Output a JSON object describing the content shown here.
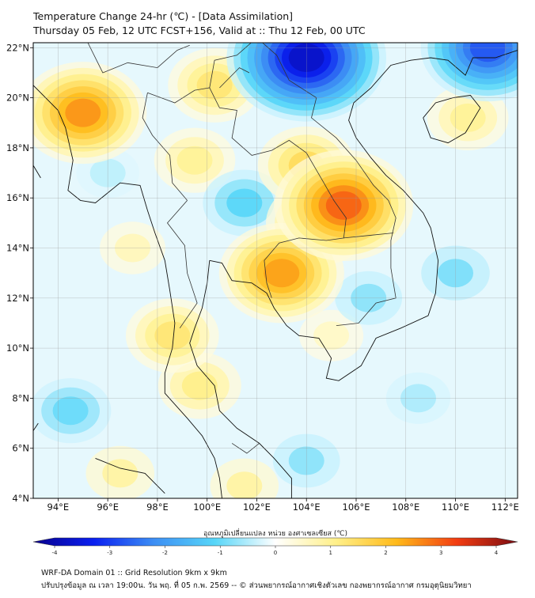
{
  "title": {
    "line1": "Temperature Change 24-hr (℃) - [Data Assimilation]",
    "line2": "Thursday 05 Feb, 12 UTC FCST+156, Valid at :: Thu 12 Feb, 00 UTC"
  },
  "map": {
    "lon_range": [
      93,
      112.5
    ],
    "lat_range": [
      4,
      22.2
    ],
    "lat_ticks": [
      "4°N",
      "6°N",
      "8°N",
      "10°N",
      "12°N",
      "14°N",
      "16°N",
      "18°N",
      "20°N",
      "22°N"
    ],
    "lon_ticks": [
      "94°E",
      "96°E",
      "98°E",
      "100°E",
      "102°E",
      "104°E",
      "106°E",
      "108°E",
      "110°E",
      "112°E"
    ],
    "lat_values": [
      4,
      6,
      8,
      10,
      12,
      14,
      16,
      18,
      20,
      22
    ],
    "lon_values": [
      94,
      96,
      98,
      100,
      102,
      104,
      106,
      108,
      110,
      112
    ],
    "grid": true,
    "hotspots": [
      {
        "lon": 105.5,
        "lat": 15.7,
        "value": 2.7
      },
      {
        "lon": 103.0,
        "lat": 13.0,
        "value": 2.2
      },
      {
        "lon": 95.0,
        "lat": 19.4,
        "value": 2.3
      },
      {
        "lon": 100.3,
        "lat": 20.5,
        "value": 1.2
      },
      {
        "lon": 98.6,
        "lat": 10.5,
        "value": 1.2
      },
      {
        "lon": 104.0,
        "lat": 17.3,
        "value": 1.4
      },
      {
        "lon": 104.5,
        "lat": 15.0,
        "value": 1.6
      },
      {
        "lon": 99.7,
        "lat": 8.5,
        "value": 1.0
      },
      {
        "lon": 99.5,
        "lat": 17.5,
        "value": 0.9
      },
      {
        "lon": 96.5,
        "lat": 5.0,
        "value": 0.8
      },
      {
        "lon": 110.5,
        "lat": 19.2,
        "value": 0.9
      },
      {
        "lon": 101.5,
        "lat": 4.5,
        "value": 0.8
      },
      {
        "lon": 105.0,
        "lat": 10.5,
        "value": 0.5
      },
      {
        "lon": 97.0,
        "lat": 14.0,
        "value": 0.6
      },
      {
        "lon": 104.0,
        "lat": 21.6,
        "value": -3.4
      },
      {
        "lon": 111.3,
        "lat": 22.0,
        "value": -2.5
      },
      {
        "lon": 101.5,
        "lat": 15.8,
        "value": -1.0
      },
      {
        "lon": 110.0,
        "lat": 13.0,
        "value": -0.8
      },
      {
        "lon": 94.5,
        "lat": 7.5,
        "value": -0.9
      },
      {
        "lon": 106.5,
        "lat": 12.0,
        "value": -0.7
      },
      {
        "lon": 96.0,
        "lat": 17.0,
        "value": -0.4
      },
      {
        "lon": 104.0,
        "lat": 5.5,
        "value": -0.7
      },
      {
        "lon": 108.5,
        "lat": 8.0,
        "value": -0.5
      }
    ]
  },
  "colorbar": {
    "label": "อุณหภูมิเปลี่ยนแปลง หน่วย องศาเซลเซียส (℃)",
    "min": -4,
    "max": 4,
    "ticks": [
      "-4",
      "-3",
      "-2",
      "-1",
      "0",
      "1",
      "2",
      "3",
      "4"
    ],
    "tick_values": [
      -4,
      -3,
      -2,
      -1,
      0,
      1,
      2,
      3,
      4
    ],
    "colors": [
      "#08008c",
      "#0a1ff0",
      "#3d8ff4",
      "#57d6f8",
      "#ffffff",
      "#fff08a",
      "#ffba1a",
      "#f23c12",
      "#7a0c12"
    ]
  },
  "footer": {
    "line1": "WRF-DA Domain 01 :: Grid Resolution 9km x 9km",
    "line2": "ปรับปรุงข้อมูล ณ เวลา 19:00น. วัน พฤ. ที่ 05 ก.พ. 2569 -- © ส่วนพยากรณ์อากาศเชิงตัวเลข กองพยากรณ์อากาศ กรมอุตุนิยมวิทยา"
  }
}
